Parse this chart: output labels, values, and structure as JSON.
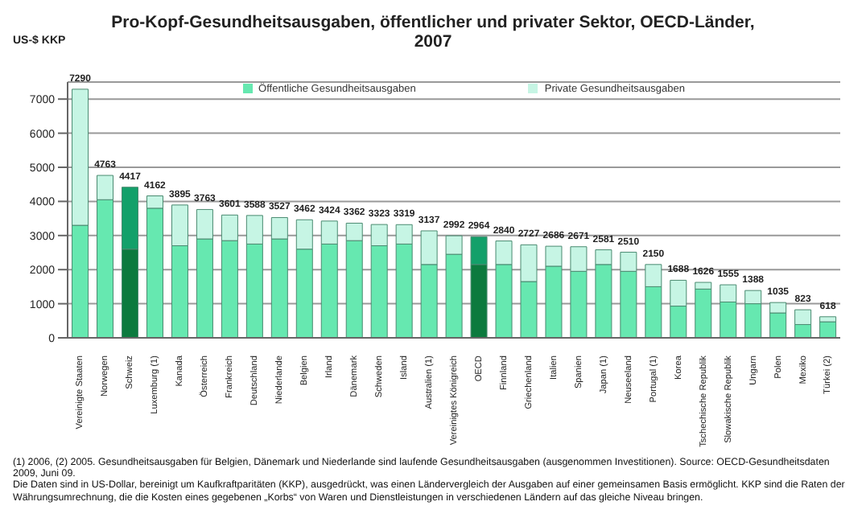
{
  "chart_data": {
    "type": "bar",
    "title": "Pro-Kopf-Gesundheitsausgaben, öffentlicher und privater Sektor, OECD-Länder, 2007",
    "ylabel": "US-$ KKP",
    "categories": [
      "Vereinigte Staaten",
      "Norwegen",
      "Schweiz",
      "Luxemburg (1)",
      "Kanada",
      "Österreich",
      "Frankreich",
      "Deutschland",
      "Niederlande",
      "Belgien",
      "Irland",
      "Dänemark",
      "Schweden",
      "Island",
      "Australien (1)",
      "Vereinigtes Königreich",
      "OECD",
      "Finnland",
      "Griechenland",
      "Italien",
      "Spanien",
      "Japan (1)",
      "Neuseeland",
      "Portugal (1)",
      "Korea",
      "Tschechische Republik",
      "Slowakische Republik",
      "Ungarn",
      "Polen",
      "Mexiko",
      "Türkei (2)"
    ],
    "series": [
      {
        "name": "Öffentliche Gesundheitsausgaben",
        "color": "#66e8b0",
        "colors": [
          "#66e8b0",
          "#66e8b0",
          "#0c7a3e",
          "#66e8b0",
          "#66e8b0",
          "#66e8b0",
          "#66e8b0",
          "#66e8b0",
          "#66e8b0",
          "#66e8b0",
          "#66e8b0",
          "#66e8b0",
          "#66e8b0",
          "#66e8b0",
          "#66e8b0",
          "#66e8b0",
          "#0c7a3e",
          "#66e8b0",
          "#66e8b0",
          "#66e8b0",
          "#66e8b0",
          "#66e8b0",
          "#66e8b0",
          "#66e8b0",
          "#66e8b0",
          "#66e8b0",
          "#66e8b0",
          "#66e8b0",
          "#66e8b0",
          "#66e8b0",
          "#66e8b0"
        ],
        "values": [
          3300,
          4050,
          2600,
          3800,
          2700,
          2900,
          2850,
          2750,
          2900,
          2600,
          2750,
          2850,
          2700,
          2750,
          2150,
          2450,
          2150,
          2150,
          1650,
          2100,
          1950,
          2150,
          1950,
          1500,
          930,
          1430,
          1050,
          1000,
          730,
          390,
          470
        ]
      },
      {
        "name": "Private Gesundheitsausgaben",
        "color": "#c6f5e4",
        "colors": [
          "#c6f5e4",
          "#c6f5e4",
          "#13a06a",
          "#c6f5e4",
          "#c6f5e4",
          "#c6f5e4",
          "#c6f5e4",
          "#c6f5e4",
          "#c6f5e4",
          "#c6f5e4",
          "#c6f5e4",
          "#c6f5e4",
          "#c6f5e4",
          "#c6f5e4",
          "#c6f5e4",
          "#c6f5e4",
          "#13a06a",
          "#c6f5e4",
          "#c6f5e4",
          "#c6f5e4",
          "#c6f5e4",
          "#c6f5e4",
          "#c6f5e4",
          "#c6f5e4",
          "#c6f5e4",
          "#c6f5e4",
          "#c6f5e4",
          "#c6f5e4",
          "#c6f5e4",
          "#c6f5e4",
          "#c6f5e4"
        ],
        "values": [
          3990,
          713,
          1817,
          362,
          1195,
          863,
          751,
          838,
          627,
          862,
          674,
          512,
          623,
          569,
          987,
          542,
          814,
          690,
          1077,
          586,
          721,
          431,
          560,
          650,
          758,
          196,
          505,
          388,
          305,
          433,
          148
        ]
      }
    ],
    "stacked": true,
    "totals": [
      "7290",
      "4763",
      "4417",
      "4162",
      "3895",
      "3763",
      "3601",
      "3588",
      "3527",
      "3462",
      "3424",
      "3362",
      "3323",
      "3319",
      "3137",
      "2992",
      "2964",
      "2840",
      "2727",
      "2686",
      "2671",
      "2581",
      "2510",
      "2150",
      "1688",
      "1626",
      "1555",
      "1388",
      "1035",
      "823",
      "618"
    ],
    "ylim": [
      0,
      7500
    ],
    "yticks": [
      0,
      1000,
      2000,
      3000,
      4000,
      5000,
      6000,
      7000
    ],
    "grid": "y",
    "legend": "top",
    "annotations": [
      "(1) 2006, (2) 2005. Gesundheitsausgaben für Belgien, Dänemark und Niederlande sind laufende Gesundheitsausgaben (ausgenommen Investitionen). Source: OECD-Gesundheitsdaten 2009, Juni 09.",
      "Die Daten sind in US-Dollar, bereinigt um Kaufkraftparitäten (KKP), ausgedrückt, was einen Ländervergleich der Ausgaben auf einer gemeinsamen Basis ermöglicht. KKP sind die Raten der Währungsumrechnung, die die Kosten eines gegebenen „Korbs“ von Waren und Dienstleistungen in verschiedenen Ländern auf das gleiche Niveau bringen."
    ]
  }
}
